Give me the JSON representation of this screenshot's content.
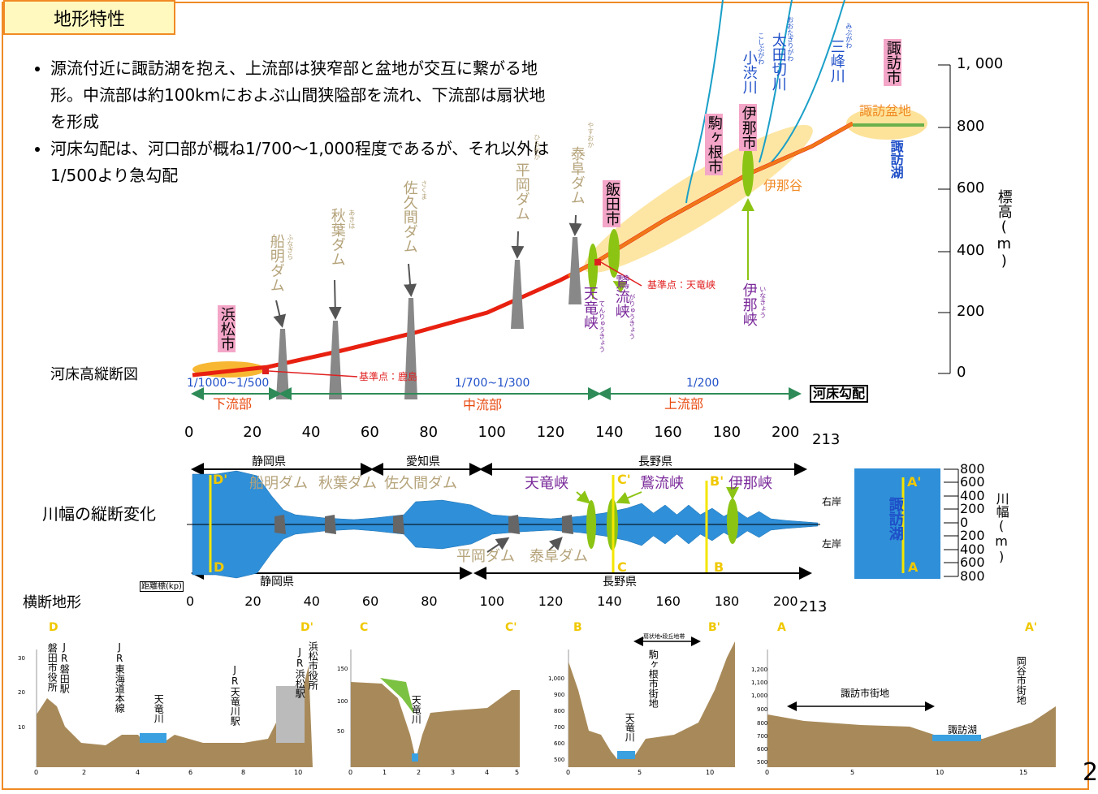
{
  "header": {
    "title": "地形特性"
  },
  "bullets": [
    "源流付近に諏訪湖を抱え、上流部は狭窄部と盆地が交互に繋がる地形。中流部は約100kmにおよぶ山間狭隘部を流れ、下流部は扇状地を形成",
    "河床勾配は、河口部が概ね1/700～1,000程度であるが、それ以外は1/500より急勾配"
  ],
  "profile": {
    "title": "河床高縦断図",
    "y_axis_label": "標高(m)",
    "y_ticks": [
      "1, 000",
      "800",
      "600",
      "400",
      "200",
      "0"
    ],
    "x_ticks": [
      "0",
      "20",
      "40",
      "60",
      "80",
      "100",
      "120",
      "140",
      "160",
      "180",
      "200",
      "213"
    ],
    "cities": [
      "浜松市",
      "飯田市",
      "駒ヶ根市",
      "伊那市",
      "諏訪市"
    ],
    "dams": [
      {
        "name": "船明ダム",
        "reading": "ふなぎら"
      },
      {
        "name": "秋葉ダム",
        "reading": "あきは"
      },
      {
        "name": "佐久間ダム",
        "reading": "さくま"
      },
      {
        "name": "平岡ダム",
        "reading": "ひらおか"
      },
      {
        "name": "泰阜ダム",
        "reading": "やすおか"
      }
    ],
    "gorges": [
      {
        "name": "天竜峡",
        "reading": "てんりゅうきょう"
      },
      {
        "name": "鵞流峡",
        "reading": "がりゅうきょう"
      },
      {
        "name": "伊那峡",
        "reading": "いなきょう"
      }
    ],
    "tributaries": [
      {
        "name": "小渋川",
        "reading": "こしぶがわ"
      },
      {
        "name": "太田切川",
        "reading": "おおたぎりがわ"
      },
      {
        "name": "三峰川",
        "reading": "みぶがわ"
      }
    ],
    "basins": [
      "諏訪盆地",
      "伊那谷"
    ],
    "lake": "諏訪湖",
    "reference_points": [
      "基準点：天竜峡",
      "基準点：鹿島"
    ],
    "gradients": [
      "1/1000~1/500",
      "1/700~1/300",
      "1/200"
    ],
    "reaches": [
      "下流部",
      "中流部",
      "上流部"
    ],
    "gradient_label": "河床勾配"
  },
  "width": {
    "title": "川幅の縦断変化",
    "prefectures_top": [
      "静岡県",
      "愛知県",
      "長野県"
    ],
    "prefectures_bottom": [
      "静岡県",
      "長野県"
    ],
    "labels_top": [
      "船明ダム",
      "秋葉ダム",
      "佐久間ダム",
      "天竜峡",
      "鵞流峡",
      "伊那峡"
    ],
    "labels_bottom": [
      "平岡ダム",
      "泰阜ダム"
    ],
    "sections": [
      "D'",
      "D",
      "C'",
      "C",
      "B'",
      "B",
      "A'",
      "A"
    ],
    "banks": [
      "右岸",
      "左岸"
    ],
    "lake": "諏訪湖",
    "y_axis_label": "川幅(m)",
    "y_ticks": [
      "800",
      "600",
      "400",
      "200",
      "0",
      "200",
      "400",
      "600",
      "800"
    ],
    "distance_label": "距離標(kp)",
    "x_ticks": [
      "0",
      "20",
      "40",
      "60",
      "80",
      "100",
      "120",
      "140",
      "160",
      "180",
      "200",
      "213"
    ]
  },
  "cross_sections": {
    "title": "横断地形",
    "panels": [
      {
        "left": "D",
        "right": "D'",
        "labels": [
          "磐田市役所",
          "JR磐田駅",
          "JR東海道本線",
          "天竜川",
          "JR天竜川駅",
          "JR浜松駅",
          "浜松市役所"
        ],
        "y_ticks": [
          "30",
          "20",
          "10"
        ],
        "x_ticks": [
          "0",
          "2",
          "4",
          "6",
          "8",
          "10"
        ]
      },
      {
        "left": "C",
        "right": "C'",
        "labels": [
          "天竜川"
        ],
        "y_ticks": [
          "150",
          "100",
          "50"
        ],
        "x_ticks": [
          "0",
          "1",
          "2",
          "3",
          "4",
          "5"
        ]
      },
      {
        "left": "B",
        "right": "B'",
        "labels": [
          "扇状地・段丘地帯",
          "駒ヶ根市街地",
          "天竜川"
        ],
        "y_ticks": [
          "1,000",
          "900",
          "800",
          "700",
          "600",
          "500"
        ],
        "x_ticks": [
          "0",
          "5",
          "10"
        ]
      },
      {
        "left": "A",
        "right": "A'",
        "labels": [
          "諏訪市街地",
          "諏訪湖",
          "岡谷市街地"
        ],
        "y_ticks": [
          "1,200",
          "1,100",
          "1,000",
          "900",
          "800",
          "700",
          "600",
          "500"
        ],
        "x_ticks": [
          "0",
          "5",
          "10",
          "15"
        ]
      }
    ]
  },
  "page_number": "2"
}
